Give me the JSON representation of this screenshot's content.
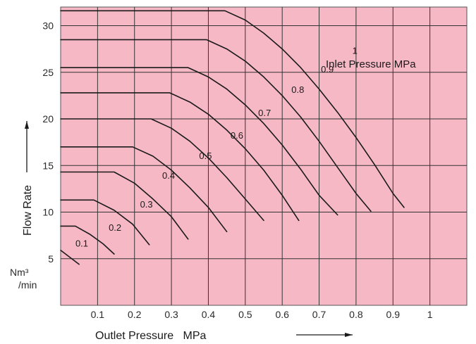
{
  "chart_data": {
    "type": "line",
    "title": "",
    "xlabel": "Outlet Pressure   MPa",
    "ylabel": "Flow Rate",
    "yunit_top": "Nm³",
    "yunit_bottom": "/min",
    "legend_title": "Inlet Pressure  MPa",
    "xlim": [
      0,
      1.1
    ],
    "ylim": [
      0,
      32
    ],
    "x_ticks": [
      0.1,
      0.2,
      0.3,
      0.4,
      0.5,
      0.6,
      0.7,
      0.8,
      0.9,
      1
    ],
    "x_tick_labels": [
      "0.1",
      "0.2",
      "0.3",
      "0.4",
      "0.5",
      "0.6",
      "0.7",
      "0.8",
      "0.9",
      "1"
    ],
    "y_ticks": [
      5,
      10,
      15,
      20,
      25,
      30
    ],
    "y_tick_labels": [
      "5",
      "10",
      "15",
      "20",
      "25",
      "30"
    ],
    "grid": true,
    "background_color": "#f7b8c6",
    "line_color": "#1a1a1a",
    "series": [
      {
        "name": "0.1",
        "label_at": [
          0.04,
          6.3
        ],
        "values": [
          [
            0,
            5.9
          ],
          [
            0.05,
            4.4
          ]
        ]
      },
      {
        "name": "0.2",
        "label_at": [
          0.13,
          8.0
        ],
        "values": [
          [
            0,
            8.5
          ],
          [
            0.04,
            8.5
          ],
          [
            0.08,
            7.6
          ],
          [
            0.115,
            6.6
          ],
          [
            0.145,
            5.5
          ]
        ]
      },
      {
        "name": "0.3",
        "label_at": [
          0.215,
          10.5
        ],
        "values": [
          [
            0,
            11.3
          ],
          [
            0.09,
            11.3
          ],
          [
            0.145,
            10.2
          ],
          [
            0.195,
            8.7
          ],
          [
            0.24,
            6.5
          ]
        ]
      },
      {
        "name": "0.4",
        "label_at": [
          0.275,
          13.6
        ],
        "values": [
          [
            0,
            14.3
          ],
          [
            0.145,
            14.3
          ],
          [
            0.2,
            13.1
          ],
          [
            0.25,
            11.4
          ],
          [
            0.3,
            9.5
          ],
          [
            0.345,
            7.1
          ]
        ]
      },
      {
        "name": "0.5",
        "label_at": [
          0.375,
          15.7
        ],
        "values": [
          [
            0,
            17.0
          ],
          [
            0.195,
            17.0
          ],
          [
            0.25,
            16.0
          ],
          [
            0.3,
            14.5
          ],
          [
            0.35,
            12.6
          ],
          [
            0.4,
            10.5
          ],
          [
            0.45,
            7.9
          ]
        ]
      },
      {
        "name": "0.6",
        "label_at": [
          0.46,
          17.9
        ],
        "values": [
          [
            0,
            20.0
          ],
          [
            0.245,
            20.0
          ],
          [
            0.3,
            19.0
          ],
          [
            0.35,
            17.6
          ],
          [
            0.4,
            15.8
          ],
          [
            0.45,
            13.7
          ],
          [
            0.5,
            11.4
          ],
          [
            0.55,
            9.1
          ]
        ]
      },
      {
        "name": "0.7",
        "label_at": [
          0.535,
          20.3
        ],
        "values": [
          [
            0,
            22.8
          ],
          [
            0.295,
            22.8
          ],
          [
            0.35,
            21.8
          ],
          [
            0.4,
            20.5
          ],
          [
            0.45,
            18.8
          ],
          [
            0.5,
            16.8
          ],
          [
            0.55,
            14.5
          ],
          [
            0.6,
            11.8
          ],
          [
            0.645,
            9.1
          ]
        ]
      },
      {
        "name": "0.8",
        "label_at": [
          0.625,
          22.8
        ],
        "values": [
          [
            0,
            25.5
          ],
          [
            0.345,
            25.5
          ],
          [
            0.4,
            24.5
          ],
          [
            0.45,
            23.2
          ],
          [
            0.5,
            21.5
          ],
          [
            0.55,
            19.5
          ],
          [
            0.6,
            17.2
          ],
          [
            0.65,
            14.6
          ],
          [
            0.7,
            11.8
          ],
          [
            0.75,
            9.7
          ]
        ]
      },
      {
        "name": "0.9",
        "label_at": [
          0.705,
          25.0
        ],
        "values": [
          [
            0,
            28.5
          ],
          [
            0.395,
            28.5
          ],
          [
            0.45,
            27.5
          ],
          [
            0.5,
            26.2
          ],
          [
            0.55,
            24.5
          ],
          [
            0.6,
            22.5
          ],
          [
            0.65,
            20.2
          ],
          [
            0.7,
            17.6
          ],
          [
            0.75,
            14.8
          ],
          [
            0.8,
            12.0
          ],
          [
            0.84,
            10.1
          ]
        ]
      },
      {
        "name": "1",
        "label_at": [
          0.79,
          27.0
        ],
        "values": [
          [
            0,
            31.6
          ],
          [
            0.445,
            31.6
          ],
          [
            0.5,
            30.6
          ],
          [
            0.55,
            29.2
          ],
          [
            0.6,
            27.5
          ],
          [
            0.65,
            25.5
          ],
          [
            0.7,
            23.2
          ],
          [
            0.75,
            20.7
          ],
          [
            0.8,
            18.0
          ],
          [
            0.85,
            15.1
          ],
          [
            0.9,
            12.0
          ],
          [
            0.93,
            10.5
          ]
        ]
      }
    ]
  }
}
